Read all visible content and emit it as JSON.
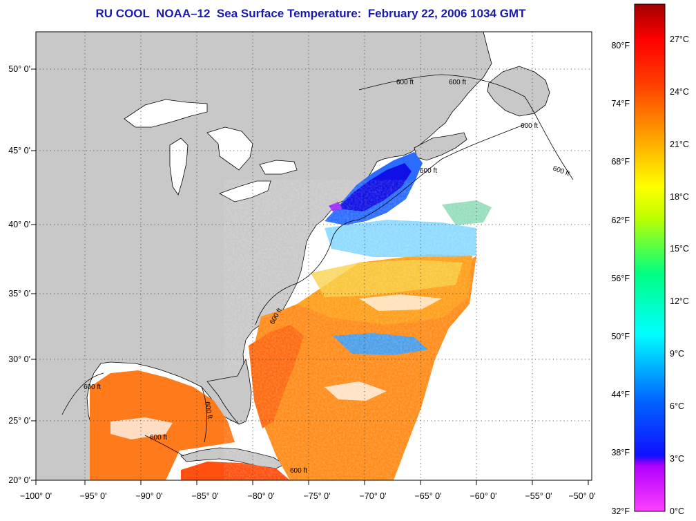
{
  "title": "RU COOL  NOAA–12  Sea Surface Temperature:  February 22, 2006 1034 GMT",
  "map": {
    "longitude_ticks": [
      "−100° 0'",
      "−95° 0'",
      "−90° 0'",
      "−85° 0'",
      "−80° 0'",
      "−75° 0'",
      "−70° 0'",
      "−65° 0'",
      "−60° 0'",
      "−55° 0'",
      "−50° 0'"
    ],
    "latitude_ticks": [
      "50° 0'",
      "45° 0'",
      "40° 0'",
      "35° 0'",
      "30° 0'",
      "25° 0'",
      "20° 0'"
    ],
    "contour_labels": [
      "600 ft",
      "600 ft",
      "600 ft",
      "600 ft",
      "600 ft",
      "600 ft",
      "600 ft",
      "600 ft",
      "600 ft",
      "600 ft"
    ],
    "colors": {
      "land": "#c8c8c8",
      "water_no_data": "#ffffff",
      "coastline": "#000000",
      "grid": "#333333"
    }
  },
  "colorbar": {
    "fahrenheit_labels": [
      "80°F",
      "74°F",
      "68°F",
      "62°F",
      "56°F",
      "50°F",
      "44°F",
      "38°F",
      "32°F"
    ],
    "celsius_labels": [
      "27°C",
      "24°C",
      "21°C",
      "18°C",
      "15°C",
      "12°C",
      "9°C",
      "6°C",
      "3°C",
      "0°C"
    ],
    "stops": [
      "#ff40ff",
      "#8800ff",
      "#0000ff",
      "#0088ff",
      "#00ffff",
      "#00ff88",
      "#80ff00",
      "#ffff00",
      "#ffa000",
      "#ff4000",
      "#ff0000",
      "#a00000"
    ]
  }
}
